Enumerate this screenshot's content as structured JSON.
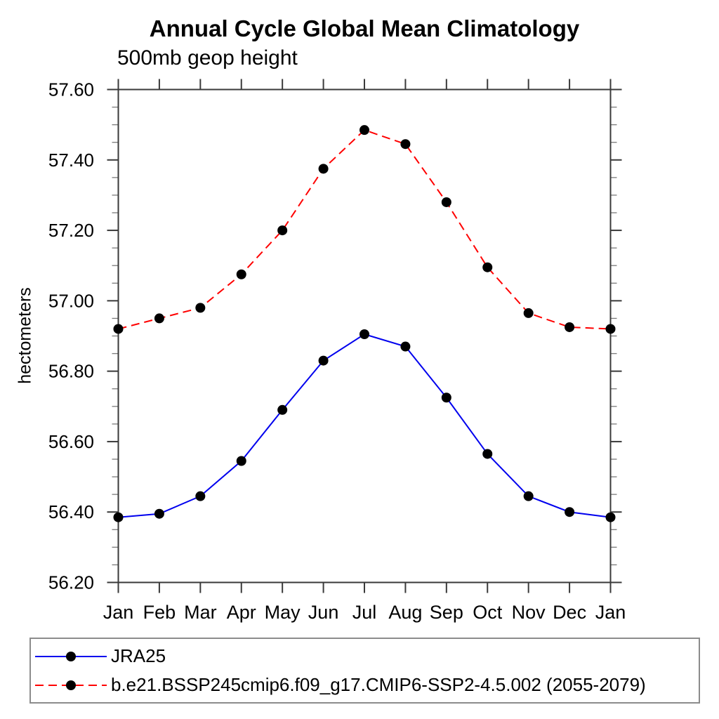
{
  "figure": {
    "background": "#ffffff"
  },
  "chart_data": {
    "type": "line",
    "title": "Annual Cycle Global Mean Climatology",
    "subtitle": "500mb geop height",
    "ylabel": "hectometers",
    "xlabel": "",
    "x_categories": [
      "Jan",
      "Feb",
      "Mar",
      "Apr",
      "May",
      "Jun",
      "Jul",
      "Aug",
      "Sep",
      "Oct",
      "Nov",
      "Dec",
      "Jan"
    ],
    "ylim": [
      56.2,
      57.6
    ],
    "y_major_step": 0.2,
    "y_minor_step": 0.05,
    "y_tick_labels": [
      "56.20",
      "56.40",
      "56.60",
      "56.80",
      "57.00",
      "57.20",
      "57.40",
      "57.60"
    ],
    "grid": false,
    "axis_color": "#3a3a3a",
    "minor_tick_color": "#7a7a7a",
    "marker": "filled-circle",
    "marker_color": "#000000",
    "legend_position": "bottom",
    "series": [
      {
        "name": "JRA25",
        "color": "#0000ee",
        "style": "solid",
        "values": [
          56.385,
          56.395,
          56.445,
          56.545,
          56.69,
          56.83,
          56.905,
          56.87,
          56.725,
          56.565,
          56.445,
          56.4,
          56.385
        ]
      },
      {
        "name": "b.e21.BSSP245cmip6.f09_g17.CMIP6-SSP2-4.5.002 (2055-2079)",
        "color": "#ff0000",
        "style": "dashed",
        "values": [
          56.92,
          56.95,
          56.98,
          57.075,
          57.2,
          57.375,
          57.485,
          57.445,
          57.28,
          57.095,
          56.965,
          56.925,
          56.92
        ]
      }
    ]
  }
}
